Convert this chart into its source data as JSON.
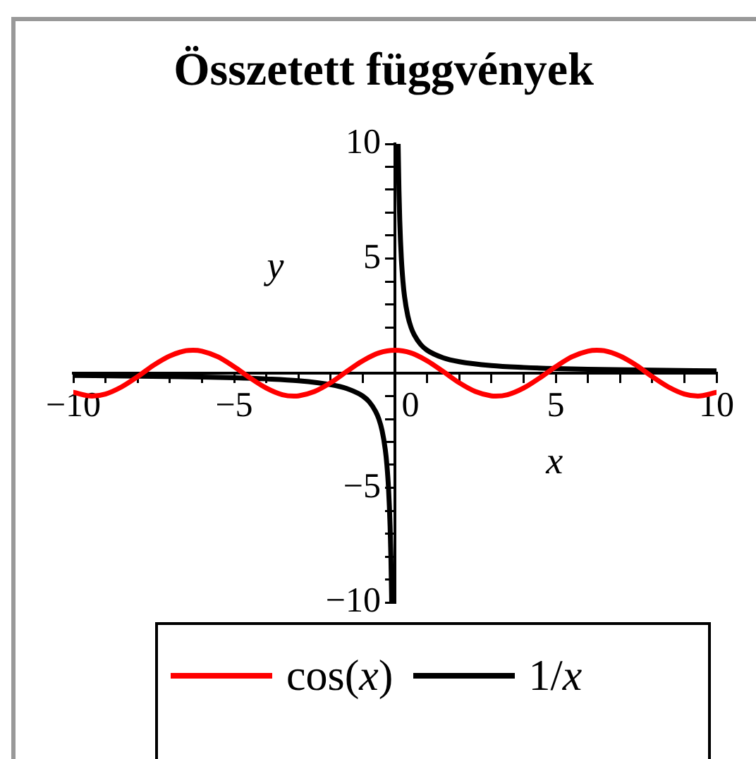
{
  "chart_data": {
    "type": "line",
    "title": "Összetett függvények",
    "xlabel": "x",
    "ylabel": "y",
    "xlim": [
      -10,
      10
    ],
    "ylim": [
      -10,
      10
    ],
    "xticks": [
      -10,
      {
        "value": -9,
        "label": null
      },
      {
        "value": -8,
        "label": null
      },
      {
        "value": -7,
        "label": null
      },
      {
        "value": -6,
        "label": null
      },
      -5,
      {
        "value": -4,
        "label": null
      },
      {
        "value": -3,
        "label": null
      },
      {
        "value": -2,
        "label": null
      },
      {
        "value": -1,
        "label": null
      },
      0,
      {
        "value": 1,
        "label": null
      },
      {
        "value": 2,
        "label": null
      },
      {
        "value": 3,
        "label": null
      },
      {
        "value": 4,
        "label": null
      },
      5,
      {
        "value": 6,
        "label": null
      },
      {
        "value": 7,
        "label": null
      },
      {
        "value": 8,
        "label": null
      },
      {
        "value": 9,
        "label": null
      },
      10
    ],
    "yticks": [
      -10,
      {
        "value": -9,
        "label": null
      },
      {
        "value": -8,
        "label": null
      },
      {
        "value": -7,
        "label": null
      },
      {
        "value": -6,
        "label": null
      },
      -5,
      {
        "value": -4,
        "label": null
      },
      {
        "value": -3,
        "label": null
      },
      {
        "value": -2,
        "label": null
      },
      {
        "value": -1,
        "label": null
      },
      {
        "value": 1,
        "label": null
      },
      {
        "value": 2,
        "label": null
      },
      {
        "value": 3,
        "label": null
      },
      {
        "value": 4,
        "label": null
      },
      5,
      {
        "value": 6,
        "label": null
      },
      {
        "value": 7,
        "label": null
      },
      {
        "value": 8,
        "label": null
      },
      {
        "value": 9,
        "label": null
      },
      10
    ],
    "legend": "bottom",
    "marker": "none",
    "series": [
      {
        "name": "cos(x)",
        "color": "#ff0000",
        "x": [
          -10,
          -9.42,
          -9,
          -8.5,
          -8,
          -7.5,
          -7,
          -6.5,
          -6.28,
          -6,
          -5.5,
          -5,
          -4.5,
          -4,
          -3.5,
          -3.14,
          -3,
          -2.5,
          -2,
          -1.5,
          -1,
          -0.5,
          0,
          0.5,
          1,
          1.5,
          2,
          2.5,
          3,
          3.14,
          3.5,
          4,
          4.5,
          5,
          5.5,
          6,
          6.28,
          6.5,
          7,
          7.5,
          8,
          8.5,
          9,
          9.42,
          10
        ],
        "values": [
          -0.84,
          -1,
          -0.91,
          -0.6,
          -0.15,
          0.35,
          0.75,
          0.98,
          1,
          0.96,
          0.71,
          0.28,
          -0.21,
          -0.65,
          -0.94,
          -1,
          -0.99,
          -0.8,
          -0.42,
          0.07,
          0.54,
          0.88,
          1,
          0.88,
          0.54,
          0.07,
          -0.42,
          -0.8,
          -0.99,
          -1,
          -0.94,
          -0.65,
          -0.21,
          0.28,
          0.71,
          0.96,
          1,
          0.98,
          0.75,
          0.35,
          -0.15,
          -0.6,
          -0.91,
          -1,
          -0.84
        ]
      },
      {
        "name": "1/x",
        "color": "#000000",
        "x": [
          -10,
          -8,
          -6,
          -5,
          -4,
          -3,
          -2,
          -1.5,
          -1,
          -0.8,
          -0.6,
          -0.5,
          -0.4,
          -0.3,
          -0.25,
          -0.2,
          -0.15,
          -0.125,
          -0.1,
          0,
          0.1,
          0.125,
          0.15,
          0.2,
          0.25,
          0.3,
          0.4,
          0.5,
          0.6,
          0.8,
          1,
          1.5,
          2,
          3,
          4,
          5,
          6,
          8,
          10
        ],
        "values": [
          -0.1,
          -0.13,
          -0.17,
          -0.2,
          -0.25,
          -0.33,
          -0.5,
          -0.67,
          -1,
          -1.25,
          -1.67,
          -2,
          -2.5,
          -3.33,
          -4,
          -5,
          -6.67,
          -8,
          -10,
          null,
          10,
          8,
          6.67,
          5,
          4,
          3.33,
          2.5,
          2,
          1.67,
          1.25,
          1,
          0.67,
          0.5,
          0.33,
          0.25,
          0.2,
          0.17,
          0.13,
          0.1
        ]
      }
    ]
  }
}
